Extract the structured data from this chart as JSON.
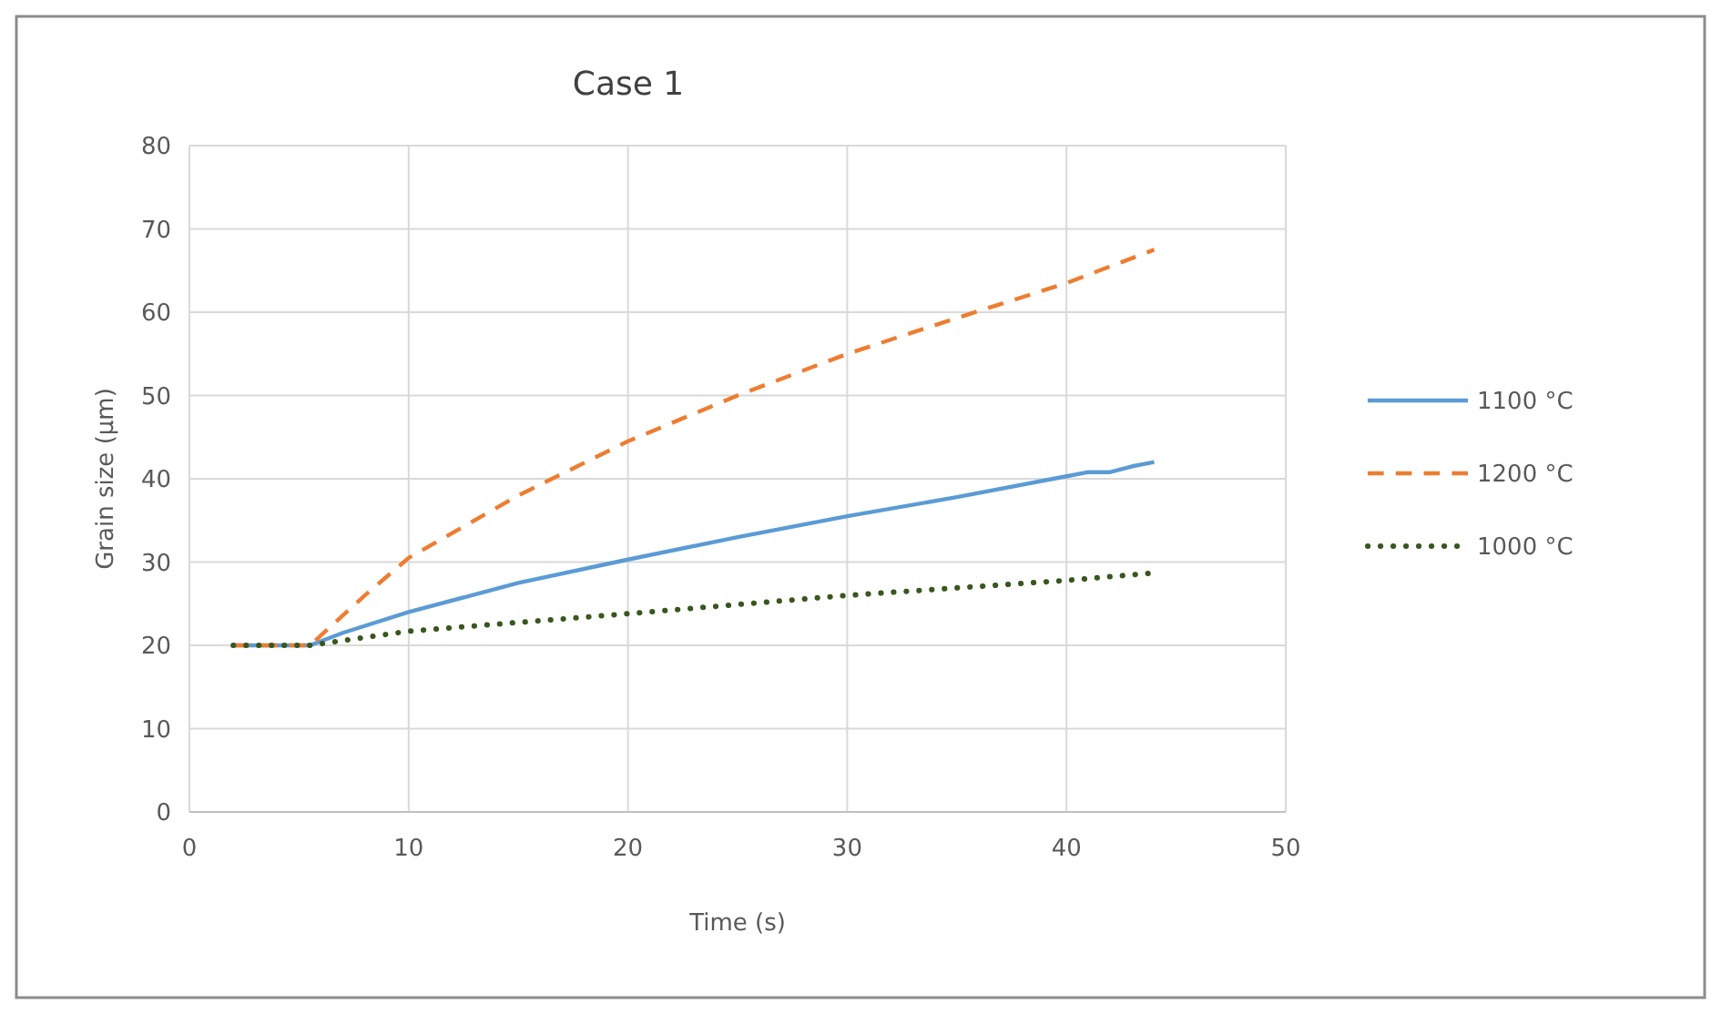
{
  "chart_data": {
    "type": "line",
    "title": "Case 1",
    "xlabel": "Time (s)",
    "ylabel": "Grain size (µm)",
    "xlim": [
      0,
      50
    ],
    "xticks": [
      0,
      10,
      20,
      30,
      40,
      50
    ],
    "ylim": [
      0,
      80
    ],
    "yticks": [
      0,
      10,
      20,
      30,
      40,
      50,
      60,
      70,
      80
    ],
    "grid": true,
    "legend": "right",
    "series": [
      {
        "name": "1100 °C",
        "color": "#5b9bd5",
        "line_style": "solid",
        "x": [
          2,
          5.5,
          7,
          10,
          15,
          20,
          25,
          30,
          35,
          40,
          41,
          42,
          43,
          44
        ],
        "values": [
          20,
          20,
          21.5,
          24,
          27.5,
          30.3,
          33,
          35.5,
          37.8,
          40.3,
          40.8,
          40.8,
          41.5,
          42
        ]
      },
      {
        "name": "1200 °C",
        "color": "#ed7d31",
        "line_style": "dashed",
        "x": [
          2,
          5.5,
          8,
          10,
          15,
          20,
          25,
          30,
          35,
          40,
          44
        ],
        "values": [
          20,
          20,
          26,
          30.5,
          38,
          44.5,
          50,
          55,
          59.3,
          63.5,
          67.5
        ]
      },
      {
        "name": "1000 °C",
        "color": "#38571f",
        "line_style": "dotted",
        "x": [
          2,
          5.5,
          10,
          20,
          30,
          40,
          44
        ],
        "values": [
          20,
          20,
          21.7,
          23.8,
          26,
          27.8,
          28.7
        ]
      }
    ]
  }
}
